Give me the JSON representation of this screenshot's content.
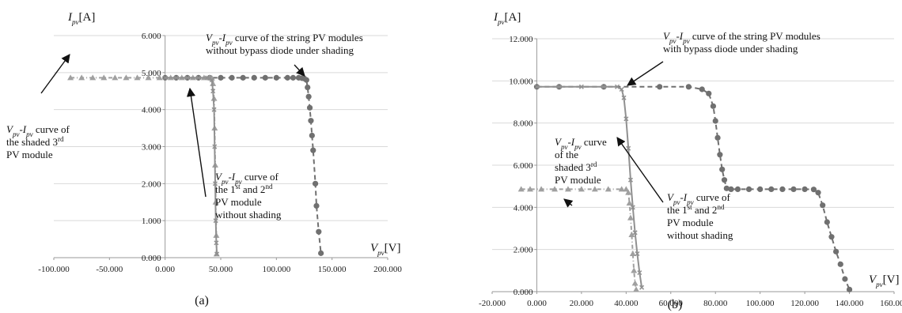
{
  "chart_data": [
    {
      "panel": "a",
      "caption": "(a)",
      "type": "line",
      "ylabel_main": "I",
      "ylabel_sub": "pv",
      "ylabel_unit": "[A]",
      "xlabel_main": "V",
      "xlabel_sub": "pv",
      "xlabel_unit": "[V]",
      "xlim": [
        -100,
        200
      ],
      "ylim": [
        0,
        6
      ],
      "xticks": [
        "-100.000",
        "-50.000",
        "0.000",
        "50.000",
        "100.000",
        "150.000",
        "200.000"
      ],
      "yticks": [
        "0.000",
        "1.000",
        "2.000",
        "3.000",
        "4.000",
        "5.000",
        "6.000"
      ],
      "grid": "horizontal",
      "series": [
        {
          "color": "#707070",
          "dash": "6,4",
          "marker": "circle",
          "points": [
            [
              0,
              4.86
            ],
            [
              10,
              4.86
            ],
            [
              20,
              4.86
            ],
            [
              30,
              4.86
            ],
            [
              40,
              4.86
            ],
            [
              50,
              4.86
            ],
            [
              60,
              4.86
            ],
            [
              70,
              4.86
            ],
            [
              80,
              4.86
            ],
            [
              90,
              4.86
            ],
            [
              100,
              4.86
            ],
            [
              110,
              4.86
            ],
            [
              115,
              4.86
            ],
            [
              120,
              4.86
            ],
            [
              123,
              4.85
            ],
            [
              125,
              4.84
            ],
            [
              127,
              4.8
            ],
            [
              128,
              4.6
            ],
            [
              129,
              4.35
            ],
            [
              130,
              4.05
            ],
            [
              131,
              3.7
            ],
            [
              132,
              3.3
            ],
            [
              133,
              2.9
            ],
            [
              135,
              2.0
            ],
            [
              136,
              1.4
            ],
            [
              138,
              0.7
            ],
            [
              140,
              0.12
            ]
          ]
        },
        {
          "color": "#a0a0a0",
          "dash": "5,3,1,3",
          "marker": "triangle",
          "points": [
            [
              -85,
              4.86
            ],
            [
              -75,
              4.86
            ],
            [
              -65,
              4.86
            ],
            [
              -55,
              4.86
            ],
            [
              -45,
              4.86
            ],
            [
              -35,
              4.86
            ],
            [
              -25,
              4.86
            ],
            [
              -15,
              4.86
            ],
            [
              -5,
              4.86
            ],
            [
              5,
              4.86
            ],
            [
              15,
              4.86
            ],
            [
              25,
              4.86
            ],
            [
              35,
              4.86
            ],
            [
              40,
              4.86
            ],
            [
              42,
              4.85
            ],
            [
              43,
              4.7
            ],
            [
              44,
              4.3
            ],
            [
              44.5,
              3.5
            ],
            [
              45,
              2.5
            ],
            [
              45.5,
              1.5
            ],
            [
              46,
              0.6
            ],
            [
              46.3,
              0.1
            ]
          ]
        },
        {
          "color": "#909090",
          "dash": "",
          "marker": "cross",
          "points": [
            [
              0,
              4.86
            ],
            [
              10,
              4.86
            ],
            [
              20,
              4.86
            ],
            [
              30,
              4.86
            ],
            [
              38,
              4.86
            ],
            [
              40,
              4.85
            ],
            [
              42,
              4.8
            ],
            [
              43,
              4.5
            ],
            [
              44,
              4.0
            ],
            [
              44.5,
              3.0
            ],
            [
              45,
              2.0
            ],
            [
              45.5,
              1.0
            ],
            [
              46,
              0.4
            ],
            [
              46.5,
              0.1
            ]
          ]
        }
      ],
      "annotations": [
        {
          "lines": [
            [
              "V",
              "pv",
              "-I",
              "pv",
              " curve of the string PV modules"
            ],
            [
              "without bypass diode under shading"
            ]
          ],
          "sup_after": []
        },
        {
          "lines": [
            [
              "V",
              "pv",
              "-I",
              "pv",
              " curve of"
            ],
            [
              "the shaded 3",
              "rd"
            ],
            [
              "PV module"
            ]
          ]
        },
        {
          "lines": [
            [
              "V",
              "pv",
              "-I",
              "pv",
              " curve of"
            ],
            [
              "the 1",
              "st",
              " and 2",
              "nd"
            ],
            [
              "PV module"
            ],
            [
              "without shading"
            ]
          ]
        }
      ]
    },
    {
      "panel": "b",
      "caption": "(b)",
      "type": "line",
      "ylabel_main": "I",
      "ylabel_sub": "pv",
      "ylabel_unit": "[A]",
      "xlabel_main": "V",
      "xlabel_sub": "pv",
      "xlabel_unit": "[V]",
      "xlim": [
        -20,
        160
      ],
      "ylim": [
        0,
        12
      ],
      "xticks": [
        "-20.000",
        "0.000",
        "20.000",
        "40.000",
        "60.000",
        "80.000",
        "100.000",
        "120.000",
        "140.000",
        "160.000"
      ],
      "yticks": [
        "0.000",
        "2.000",
        "4.000",
        "6.000",
        "8.000",
        "10.000",
        "12.000"
      ],
      "grid": "horizontal",
      "series": [
        {
          "color": "#707070",
          "dash": "6,4",
          "marker": "circle",
          "points": [
            [
              0,
              9.72
            ],
            [
              10,
              9.72
            ],
            [
              30,
              9.72
            ],
            [
              55,
              9.72
            ],
            [
              68,
              9.72
            ],
            [
              74,
              9.6
            ],
            [
              77,
              9.4
            ],
            [
              79,
              8.8
            ],
            [
              80,
              8.1
            ],
            [
              81,
              7.3
            ],
            [
              82,
              6.5
            ],
            [
              83,
              5.8
            ],
            [
              84,
              5.3
            ],
            [
              85,
              4.9
            ],
            [
              87,
              4.86
            ],
            [
              90,
              4.86
            ],
            [
              95,
              4.86
            ],
            [
              100,
              4.86
            ],
            [
              105,
              4.86
            ],
            [
              110,
              4.86
            ],
            [
              115,
              4.86
            ],
            [
              120,
              4.86
            ],
            [
              124,
              4.85
            ],
            [
              126,
              4.7
            ],
            [
              128,
              4.1
            ],
            [
              130,
              3.3
            ],
            [
              132,
              2.6
            ],
            [
              134,
              1.9
            ],
            [
              136,
              1.3
            ],
            [
              138,
              0.6
            ],
            [
              140,
              0.1
            ]
          ]
        },
        {
          "color": "#a0a0a0",
          "dash": "5,3,1,3",
          "marker": "triangle",
          "points": [
            [
              -7,
              4.86
            ],
            [
              -3,
              4.86
            ],
            [
              2,
              4.86
            ],
            [
              8,
              4.86
            ],
            [
              14,
              4.86
            ],
            [
              20,
              4.86
            ],
            [
              26,
              4.86
            ],
            [
              32,
              4.86
            ],
            [
              38,
              4.86
            ],
            [
              40,
              4.86
            ],
            [
              41,
              4.7
            ],
            [
              41.5,
              4.2
            ],
            [
              42,
              3.5
            ],
            [
              42.5,
              2.7
            ],
            [
              43,
              1.8
            ],
            [
              43.5,
              1.0
            ],
            [
              44,
              0.4
            ],
            [
              44.5,
              0.1
            ]
          ]
        },
        {
          "color": "#909090",
          "dash": "",
          "marker": "cross",
          "points": [
            [
              0,
              9.72
            ],
            [
              10,
              9.72
            ],
            [
              20,
              9.72
            ],
            [
              30,
              9.72
            ],
            [
              36,
              9.72
            ],
            [
              38,
              9.6
            ],
            [
              39,
              9.2
            ],
            [
              40,
              8.2
            ],
            [
              41,
              6.8
            ],
            [
              42,
              5.3
            ],
            [
              43,
              4.0
            ],
            [
              44,
              2.8
            ],
            [
              45,
              1.8
            ],
            [
              46,
              0.9
            ],
            [
              47,
              0.2
            ]
          ]
        }
      ],
      "annotations": [
        {
          "lines": [
            [
              "V",
              "pv",
              "-I",
              "pv",
              " curve of the string PV modules"
            ],
            [
              "with bypass diode under shading"
            ]
          ]
        },
        {
          "lines": [
            [
              "V",
              "pv",
              "-I",
              "pv",
              " curve"
            ],
            [
              "of the"
            ],
            [
              "shaded 3",
              "rd"
            ],
            [
              "PV module"
            ]
          ]
        },
        {
          "lines": [
            [
              "V",
              "pv",
              "-I",
              "pv",
              " curve of"
            ],
            [
              "the 1",
              "st",
              " and 2",
              "nd"
            ],
            [
              "PV module"
            ],
            [
              "without shading"
            ]
          ]
        }
      ]
    }
  ]
}
